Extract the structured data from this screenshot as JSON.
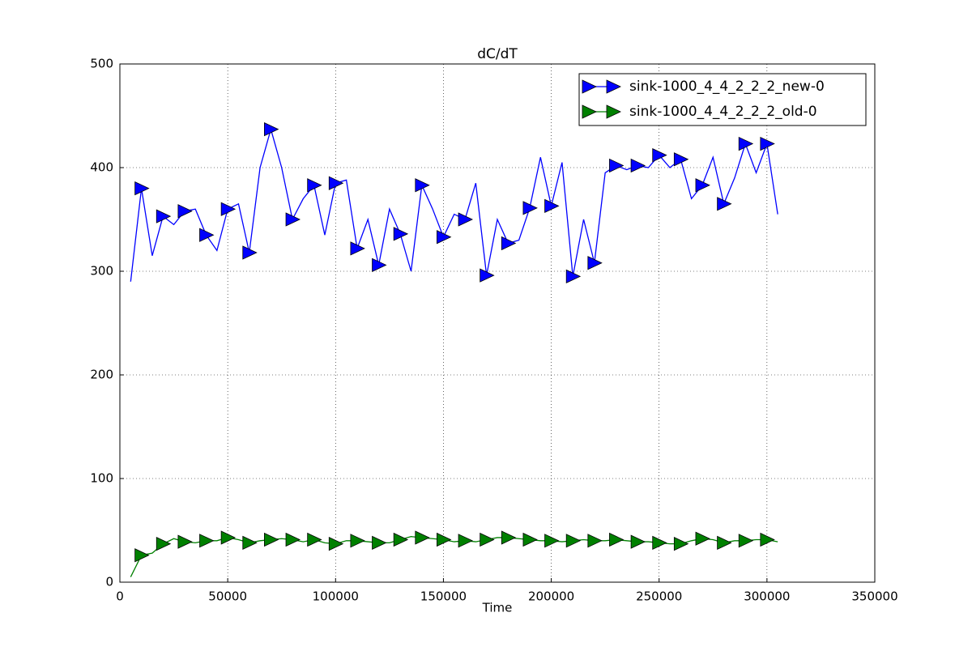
{
  "chart_data": {
    "type": "line",
    "title": "dC/dT",
    "x_label": "Time",
    "x": [
      5000,
      10000,
      15000,
      20000,
      25000,
      30000,
      35000,
      40000,
      45000,
      50000,
      55000,
      60000,
      65000,
      70000,
      75000,
      80000,
      85000,
      90000,
      95000,
      100000,
      105000,
      110000,
      115000,
      120000,
      125000,
      130000,
      135000,
      140000,
      145000,
      150000,
      155000,
      160000,
      165000,
      170000,
      175000,
      180000,
      185000,
      190000,
      195000,
      200000,
      205000,
      210000,
      215000,
      220000,
      225000,
      230000,
      235000,
      240000,
      245000,
      250000,
      255000,
      260000,
      265000,
      270000,
      275000,
      280000,
      285000,
      290000,
      295000,
      300000,
      305000
    ],
    "series": [
      {
        "name": "sink-1000_4_4_2_2_2_new-0",
        "color": "#0000ff",
        "values": [
          290,
          380,
          315,
          353,
          345,
          358,
          360,
          335,
          320,
          360,
          365,
          318,
          400,
          437,
          400,
          350,
          370,
          383,
          335,
          385,
          388,
          322,
          350,
          306,
          360,
          336,
          300,
          383,
          360,
          333,
          355,
          350,
          385,
          296,
          350,
          327,
          330,
          361,
          410,
          363,
          405,
          295,
          350,
          308,
          395,
          402,
          398,
          402,
          400,
          412,
          400,
          408,
          370,
          383,
          410,
          365,
          390,
          423,
          395,
          423,
          355
        ]
      },
      {
        "name": "sink-1000_4_4_2_2_2_old-0",
        "color": "#008000",
        "values": [
          5,
          26,
          28,
          37,
          42,
          39,
          38,
          40,
          40,
          43,
          41,
          38,
          40,
          41,
          42,
          41,
          39,
          41,
          38,
          37,
          40,
          40,
          39,
          38,
          38,
          41,
          44,
          43,
          42,
          41,
          39,
          40,
          39,
          41,
          43,
          43,
          42,
          41,
          40,
          40,
          39,
          40,
          41,
          40,
          40,
          41,
          40,
          39,
          39,
          38,
          37,
          37,
          40,
          42,
          41,
          38,
          40,
          40,
          41,
          41,
          39
        ]
      }
    ],
    "marker": "triangle-right",
    "markevery": 2,
    "xlim": [
      0,
      350000
    ],
    "xticks": [
      0,
      50000,
      100000,
      150000,
      200000,
      250000,
      300000,
      350000
    ],
    "ylim": [
      0,
      500
    ],
    "yticks": [
      0,
      100,
      200,
      300,
      400,
      500
    ],
    "grid": true,
    "legend": "upper right"
  }
}
